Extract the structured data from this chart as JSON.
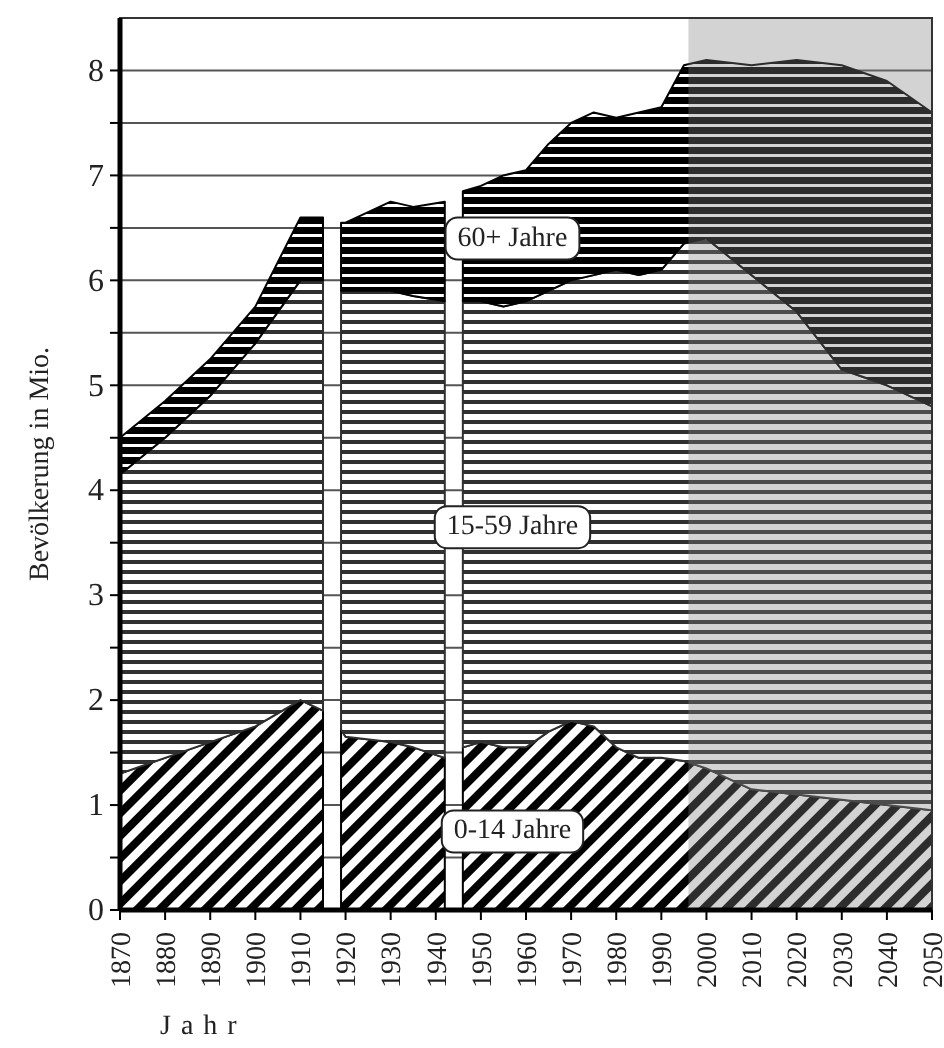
{
  "chart_data": {
    "type": "area",
    "stacked": true,
    "xlabel": "Jahr",
    "ylabel": "Bevölkerung in Mio.",
    "x": [
      1870,
      1880,
      1890,
      1900,
      1910,
      1915,
      1917,
      1919,
      1920,
      1930,
      1935,
      1942,
      1944,
      1946,
      1950,
      1955,
      1960,
      1965,
      1970,
      1975,
      1980,
      1985,
      1990,
      1995,
      2000,
      2010,
      2020,
      2030,
      2040,
      2050
    ],
    "series": [
      {
        "name": "0-14 Jahre",
        "color": "#000000",
        "values": [
          1.3,
          1.45,
          1.6,
          1.75,
          2.0,
          1.9,
          null,
          1.72,
          1.65,
          1.6,
          1.55,
          1.45,
          null,
          1.55,
          1.6,
          1.55,
          1.55,
          1.7,
          1.8,
          1.75,
          1.55,
          1.45,
          1.45,
          1.42,
          1.35,
          1.15,
          1.1,
          1.05,
          1.0,
          0.95
        ]
      },
      {
        "name": "15-59 Jahre",
        "color": "#303030",
        "values": [
          2.85,
          3.05,
          3.3,
          3.65,
          4.0,
          4.1,
          null,
          4.18,
          4.25,
          4.3,
          4.3,
          4.35,
          null,
          4.25,
          4.2,
          4.2,
          4.25,
          4.2,
          4.2,
          4.3,
          4.55,
          4.6,
          4.65,
          4.93,
          5.05,
          4.9,
          4.6,
          4.1,
          4.0,
          3.85
        ]
      },
      {
        "name": "60+ Jahre",
        "color": "#000000",
        "values": [
          0.35,
          0.35,
          0.35,
          0.35,
          0.6,
          0.6,
          null,
          0.65,
          0.65,
          0.85,
          0.85,
          0.95,
          null,
          1.05,
          1.1,
          1.25,
          1.25,
          1.4,
          1.5,
          1.55,
          1.45,
          1.55,
          1.55,
          1.7,
          1.7,
          2.0,
          2.4,
          2.9,
          2.9,
          2.8
        ]
      }
    ],
    "bands": [
      {
        "axis": "x",
        "from": 1996,
        "to": 2050,
        "color": "#808080"
      }
    ],
    "xlim": [
      1870,
      2050
    ],
    "xticks": [
      1870,
      1880,
      1890,
      1900,
      1910,
      1920,
      1930,
      1940,
      1950,
      1960,
      1970,
      1980,
      1990,
      2000,
      2010,
      2020,
      2030,
      2040,
      2050
    ],
    "ylim": [
      0,
      8.5
    ],
    "yticks": [
      0,
      {
        "value": 0.5,
        "label": null
      },
      1,
      {
        "value": 1.5,
        "label": null
      },
      2,
      {
        "value": 2.5,
        "label": null
      },
      3,
      {
        "value": 3.5,
        "label": null
      },
      4,
      {
        "value": 4.5,
        "label": null
      },
      5,
      {
        "value": 5.5,
        "label": null
      },
      6,
      {
        "value": 6.5,
        "label": null
      },
      7,
      {
        "value": 7.5,
        "label": null
      },
      8
    ],
    "grid": "y"
  }
}
